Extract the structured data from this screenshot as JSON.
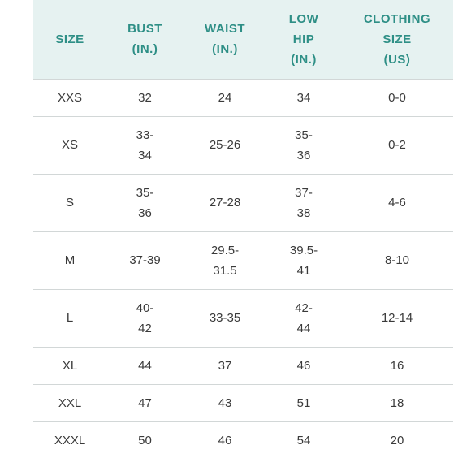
{
  "headers": {
    "size": "SIZE",
    "bust": "BUST\n(IN.)",
    "waist": "WAIST\n(IN.)",
    "low_hip": "LOW\nHIP\n(IN.)",
    "clothing_size": "CLOTHING\nSIZE\n(US)"
  },
  "rows": [
    {
      "size": "XXS",
      "bust": "32",
      "waist": "24",
      "low_hip": "34",
      "clothing_size": "0-0"
    },
    {
      "size": "XS",
      "bust": "33-\n34",
      "waist": "25-26",
      "low_hip": "35-\n36",
      "clothing_size": "0-2"
    },
    {
      "size": "S",
      "bust": "35-\n36",
      "waist": "27-28",
      "low_hip": "37-\n38",
      "clothing_size": "4-6"
    },
    {
      "size": "M",
      "bust": "37-39",
      "waist": "29.5-\n31.5",
      "low_hip": "39.5-\n41",
      "clothing_size": "8-10"
    },
    {
      "size": "L",
      "bust": "40-\n42",
      "waist": "33-35",
      "low_hip": "42-\n44",
      "clothing_size": "12-14"
    },
    {
      "size": "XL",
      "bust": "44",
      "waist": "37",
      "low_hip": "46",
      "clothing_size": "16"
    },
    {
      "size": "XXL",
      "bust": "47",
      "waist": "43",
      "low_hip": "51",
      "clothing_size": "18"
    },
    {
      "size": "XXXL",
      "bust": "50",
      "waist": "46",
      "low_hip": "54",
      "clothing_size": "20"
    }
  ],
  "colors": {
    "header_background": "#e6f2f1",
    "header_text": "#2e8f86",
    "body_text": "#3a3a3a",
    "divider": "#d2d7d7"
  }
}
